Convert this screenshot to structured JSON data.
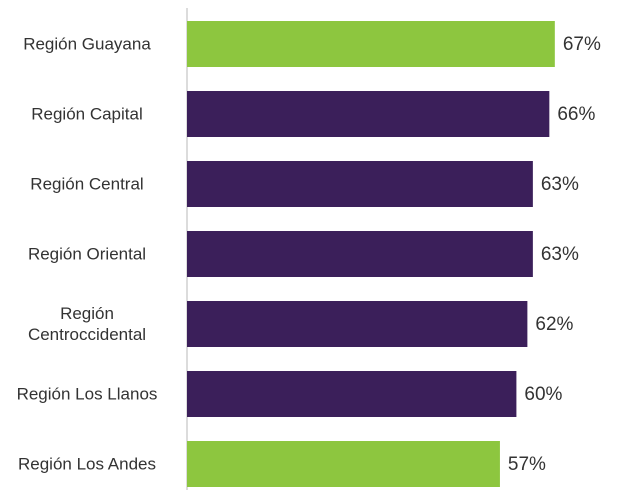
{
  "chart_data": {
    "type": "bar",
    "orientation": "horizontal",
    "categories": [
      "Región Guayana",
      "Región Capital",
      "Región Central",
      "Región Oriental",
      "Región Centroccidental",
      "Región Los Llanos",
      "Región Los Andes"
    ],
    "values": [
      67,
      66,
      63,
      63,
      62,
      60,
      57
    ],
    "value_labels": [
      "67%",
      "66%",
      "63%",
      "63%",
      "62%",
      "60%",
      "57%"
    ],
    "colors": [
      "#8dc63f",
      "#3b1f5a",
      "#3b1f5a",
      "#3b1f5a",
      "#3b1f5a",
      "#3b1f5a",
      "#8dc63f"
    ]
  }
}
